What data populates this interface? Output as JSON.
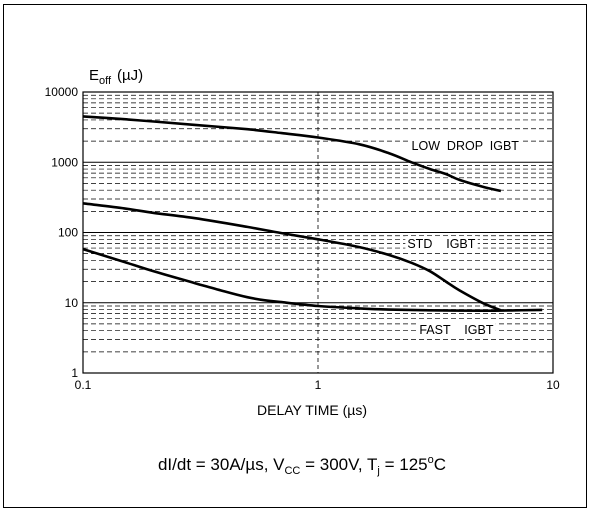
{
  "chart_data": {
    "type": "line",
    "title": "",
    "ylabel_base": "E",
    "ylabel_sub": "off",
    "ylabel_unit": "(µJ)",
    "xlabel": "DELAY TIME (µs)",
    "x_scale": "log",
    "y_scale": "log",
    "xlim": [
      0.1,
      10
    ],
    "ylim": [
      1,
      10000
    ],
    "x_ticks": [
      {
        "value": 0.1,
        "label": "0.1"
      },
      {
        "value": 1,
        "label": "1"
      },
      {
        "value": 10,
        "label": "10"
      }
    ],
    "y_ticks": [
      {
        "value": 1,
        "label": "1"
      },
      {
        "value": 10,
        "label": "10"
      },
      {
        "value": 100,
        "label": "100"
      },
      {
        "value": 1000,
        "label": "1000"
      },
      {
        "value": 10000,
        "label": "10000"
      }
    ],
    "grid": {
      "major": true,
      "minor_y": true,
      "style": "dashed"
    },
    "series": [
      {
        "name": "LOW DROP IGBT",
        "x": [
          0.1,
          0.15,
          0.2,
          0.3,
          0.5,
          0.7,
          1.0,
          1.5,
          2.0,
          2.5,
          3.0,
          3.5,
          4.0,
          5.0,
          6.0
        ],
        "y": [
          4500,
          4100,
          3800,
          3400,
          2950,
          2600,
          2250,
          1800,
          1350,
          1000,
          800,
          680,
          560,
          450,
          390
        ]
      },
      {
        "name": "STD IGBT",
        "x": [
          0.1,
          0.15,
          0.2,
          0.3,
          0.5,
          0.7,
          1.0,
          1.5,
          2.0,
          2.5,
          3.0,
          3.5,
          4.0,
          5.0,
          6.0
        ],
        "y": [
          260,
          220,
          190,
          160,
          120,
          98,
          80,
          62,
          48,
          37,
          28,
          20,
          15,
          10,
          7.8
        ]
      },
      {
        "name": "FAST IGBT",
        "x": [
          0.1,
          0.15,
          0.2,
          0.3,
          0.4,
          0.5,
          0.6,
          0.7,
          1.0,
          1.5,
          2.0,
          3.0,
          5.0,
          7.0,
          9.0
        ],
        "y": [
          58,
          38,
          28,
          19,
          14.5,
          12,
          10.8,
          10.2,
          9.0,
          8.3,
          8.0,
          7.8,
          7.7,
          7.8,
          7.9
        ]
      }
    ],
    "annotations": [
      {
        "series": "LOW DROP IGBT",
        "text": "LOW  DROP  IGBT",
        "x": 2.5,
        "y": 1500
      },
      {
        "series": "STD IGBT",
        "text": "STD    IGBT",
        "x": 2.4,
        "y": 60
      },
      {
        "series": "FAST IGBT",
        "text": "FAST    IGBT",
        "x": 2.7,
        "y": 3.6
      }
    ],
    "conditions": {
      "a": "dI/dt = 30A/µs, V",
      "a_sub": "CC",
      "b": " = 300V, T",
      "b_sub": "j",
      "c": " = 125",
      "c_sup": "o",
      "d": "C"
    },
    "colors": {
      "line": "#000000",
      "grid": "#000000",
      "background": "#ffffff"
    }
  }
}
